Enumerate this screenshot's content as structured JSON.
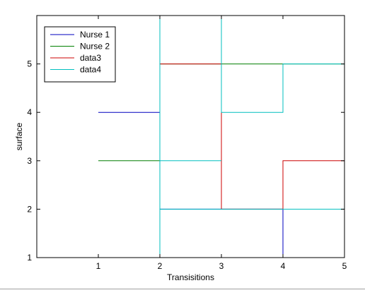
{
  "chart_data": {
    "type": "line",
    "step": "post",
    "title": "",
    "xlabel": "Transisitions",
    "ylabel": "surface",
    "xlim": [
      0,
      5
    ],
    "ylim": [
      1,
      6
    ],
    "xticks": [
      1,
      2,
      3,
      4,
      5
    ],
    "yticks": [
      1,
      2,
      3,
      4,
      5
    ],
    "grid": false,
    "legend": "top-left",
    "series": [
      {
        "name": "Nurse 1",
        "color": "#0000bf",
        "x": [
          1,
          2,
          3,
          4,
          5
        ],
        "y": [
          4,
          2,
          2,
          1,
          1
        ]
      },
      {
        "name": "Nurse 2",
        "color": "#007f00",
        "x": [
          1,
          2,
          3,
          4,
          5
        ],
        "y": [
          3,
          5,
          5,
          5,
          5
        ]
      },
      {
        "name": "data3",
        "color": "#cc0000",
        "x": [
          1,
          2,
          3,
          4,
          5
        ],
        "y": [
          1,
          5,
          2,
          3,
          4
        ]
      },
      {
        "name": "data4",
        "color": "#00bfbf",
        "x": [
          1,
          2,
          3,
          4,
          5
        ],
        "y": [
          1,
          6,
          4,
          5,
          1
        ]
      }
    ],
    "segments_extra": [
      {
        "series": "data4",
        "note": "",
        "x": [
          2,
          3
        ],
        "y": [
          3,
          3
        ]
      },
      {
        "series": "data4",
        "note": "",
        "x": [
          2,
          5
        ],
        "y": [
          2,
          2
        ]
      },
      {
        "series": "data4",
        "note": "",
        "x": [
          2,
          2
        ],
        "y": [
          6,
          1
        ]
      }
    ]
  }
}
